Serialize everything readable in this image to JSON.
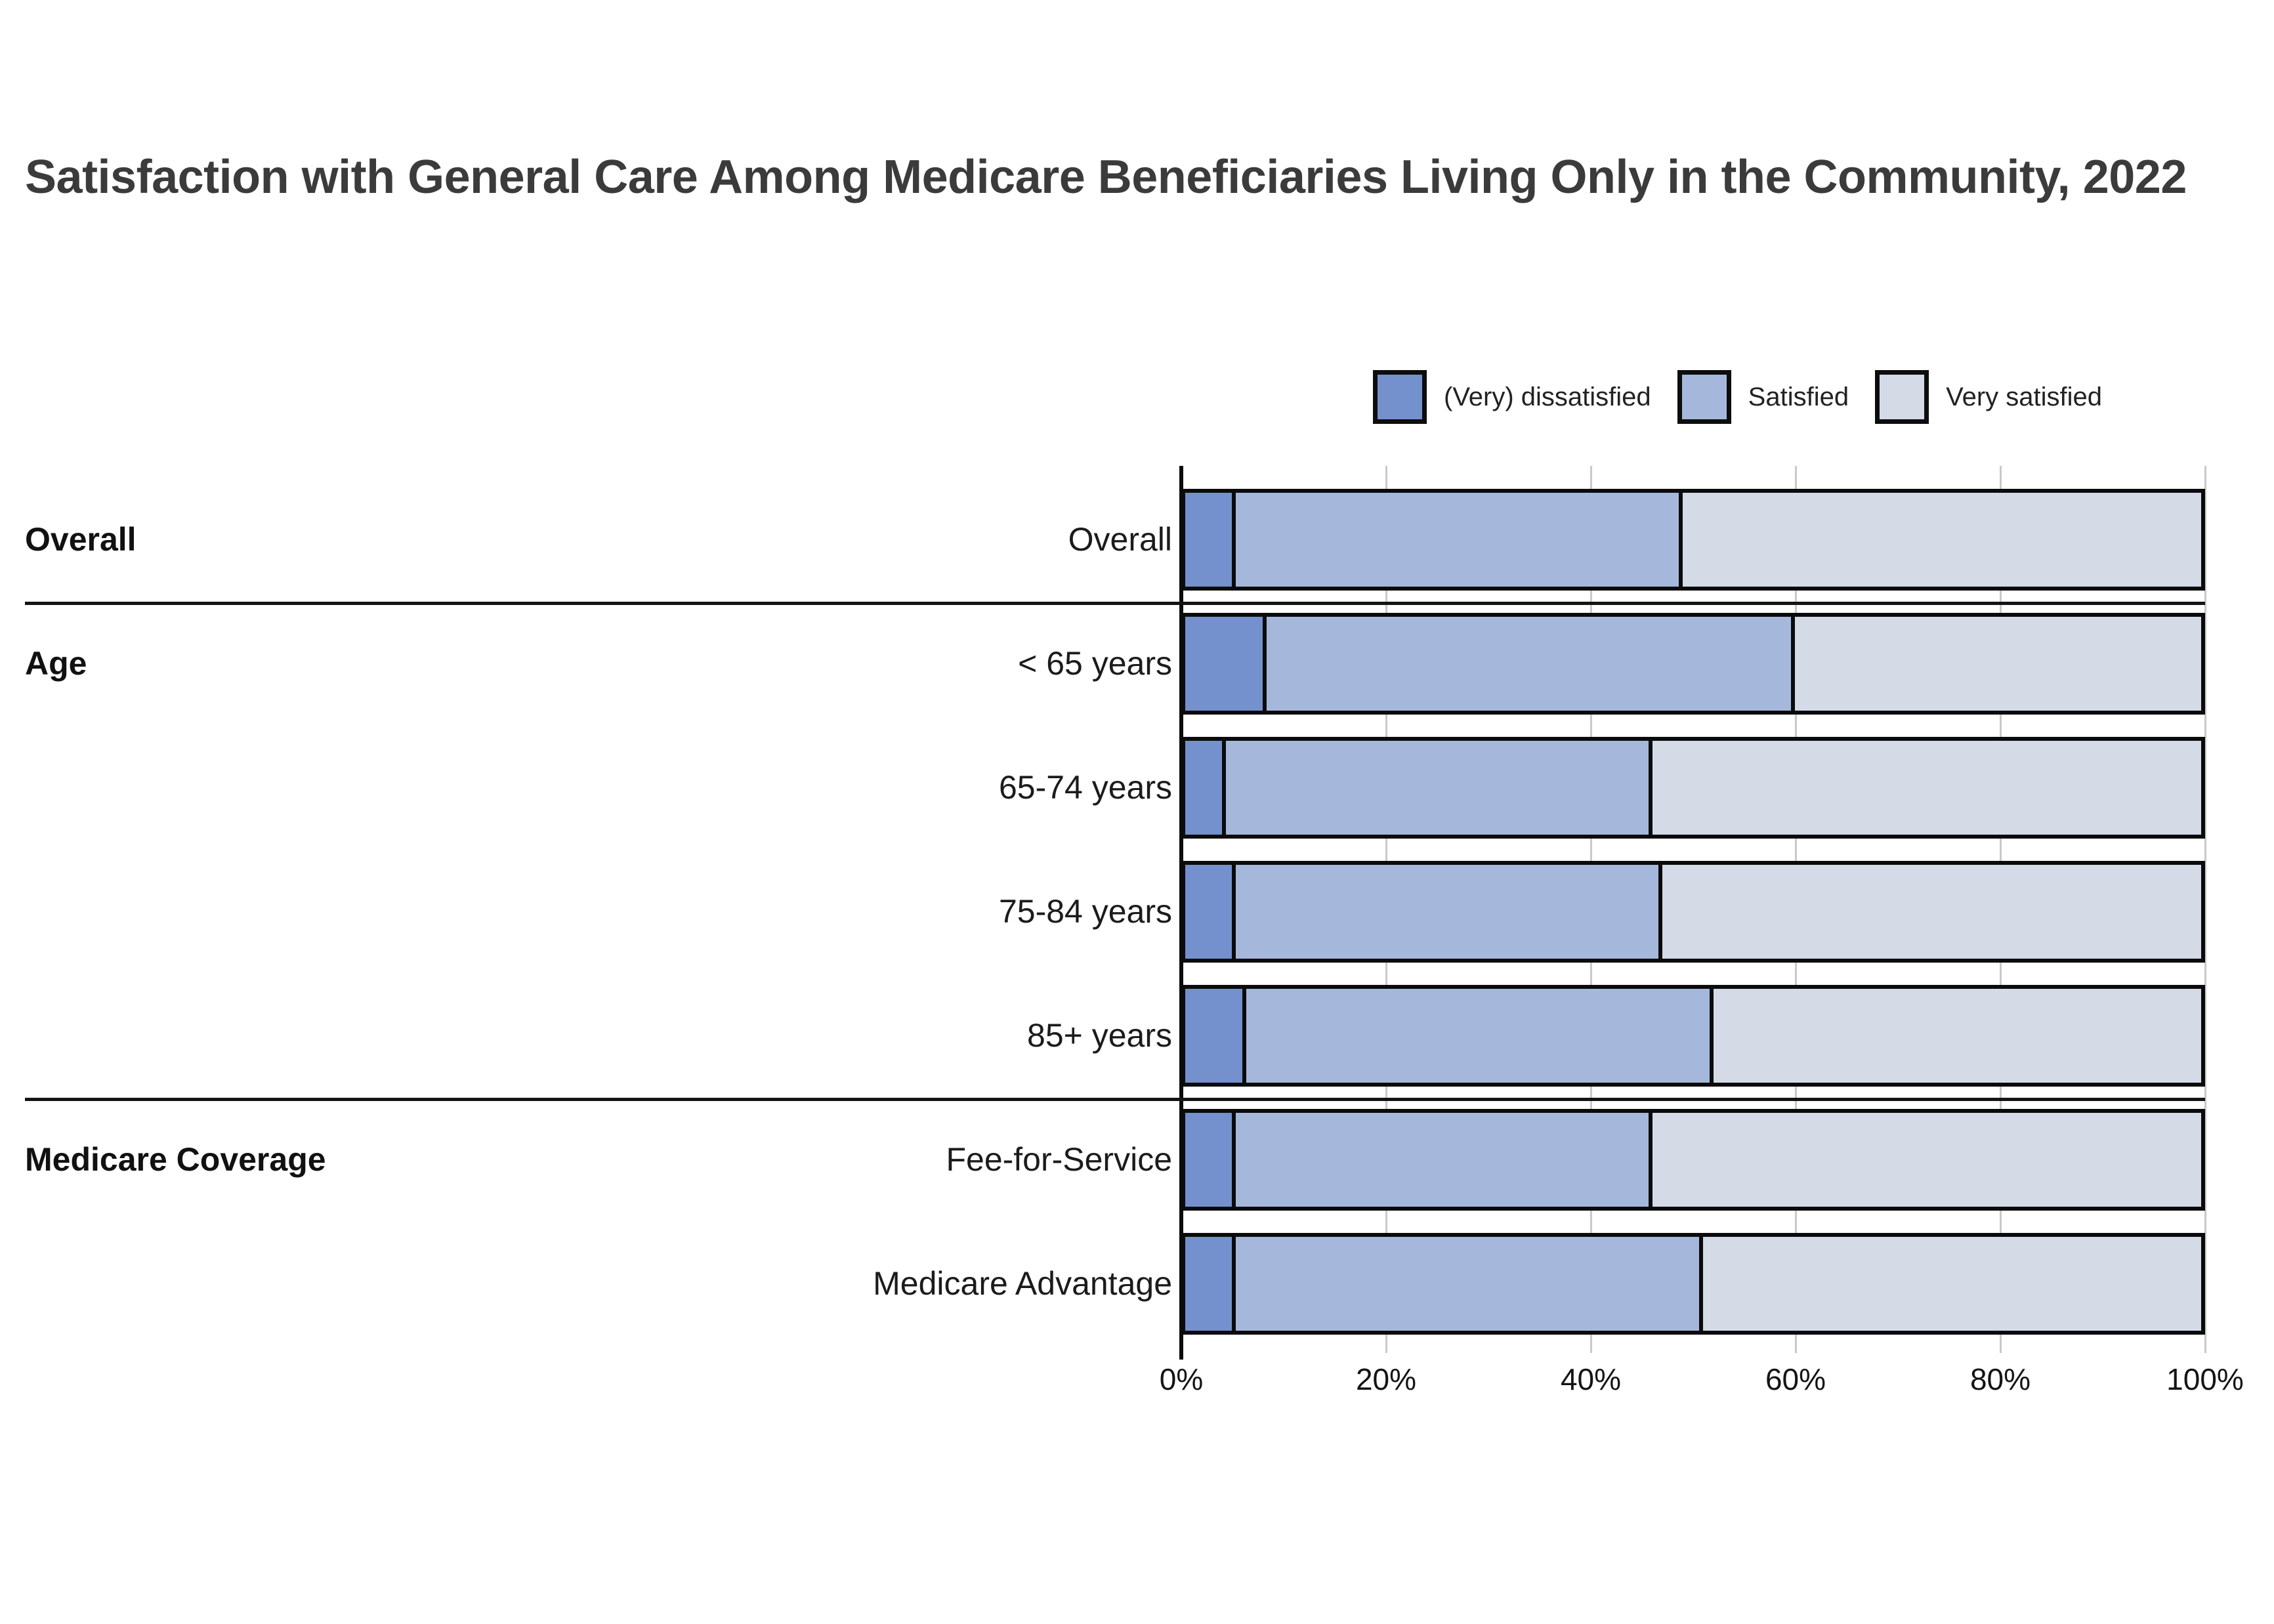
{
  "title": "Satisfaction with General Care Among Medicare Beneficiaries Living Only in the Community, 2022",
  "legend": [
    {
      "label": "(Very) dissatisfied",
      "color": "#7491CE"
    },
    {
      "label": "Satisfied",
      "color": "#A5B8DC"
    },
    {
      "label": "Very satisfied",
      "color": "#D4DAE6"
    }
  ],
  "chart_data": {
    "type": "bar",
    "stacked": true,
    "orientation": "horizontal",
    "title": "Satisfaction with General Care Among Medicare Beneficiaries Living Only in the Community, 2022",
    "categories": [
      "Overall",
      "< 65 years",
      "65-74 years",
      "75-84 years",
      "85+ years",
      "Fee-for-Service",
      "Medicare Advantage"
    ],
    "groups": [
      {
        "label": "Overall",
        "rows": [
          "Overall"
        ]
      },
      {
        "label": "Age",
        "rows": [
          "< 65 years",
          "65-74 years",
          "75-84 years",
          "85+ years"
        ]
      },
      {
        "label": "Medicare Coverage",
        "rows": [
          "Fee-for-Service",
          "Medicare Advantage"
        ]
      }
    ],
    "series": [
      {
        "name": "(Very) dissatisfied",
        "color": "#7491CE",
        "values": [
          5,
          8,
          4,
          5,
          6,
          5,
          5
        ]
      },
      {
        "name": "Satisfied",
        "color": "#A5B8DC",
        "values": [
          44,
          52,
          42,
          42,
          46,
          41,
          46
        ]
      },
      {
        "name": "Very satisfied",
        "color": "#D4DAE6",
        "values": [
          51,
          40,
          54,
          53,
          48,
          54,
          49
        ]
      }
    ],
    "x_ticks": [
      {
        "label": "0%",
        "value": 0
      },
      {
        "label": "20%",
        "value": 20
      },
      {
        "label": "40%",
        "value": 40
      },
      {
        "label": "60%",
        "value": 60
      },
      {
        "label": "80%",
        "value": 80
      },
      {
        "label": "100%",
        "value": 100
      }
    ],
    "xlim": [
      0,
      100
    ],
    "grid": true,
    "legend_position": "top-right",
    "bar_outline_color": "#0b0b0b"
  }
}
